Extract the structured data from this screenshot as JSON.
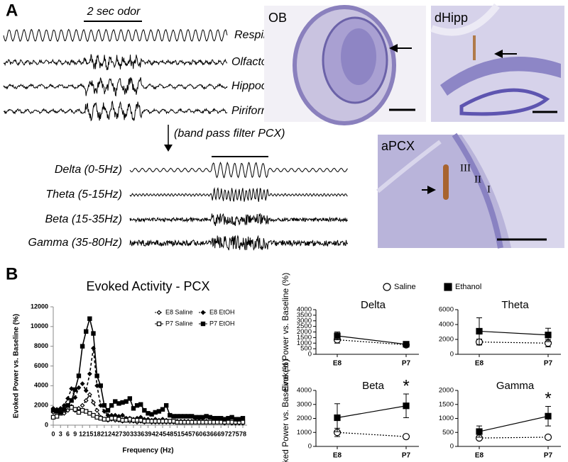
{
  "panel_a": {
    "label": "A",
    "odor_bar": "2 sec odor",
    "traces": [
      "Respiration",
      "Olfactory Bulb",
      "Hippocampus",
      "Piriform Cortex"
    ],
    "filter": "(band pass filter PCX)",
    "bands": [
      "Delta (0-5Hz)",
      "Theta (5-15Hz)",
      "Beta (15-35Hz)",
      "Gamma (35-80Hz)"
    ],
    "images": {
      "ob": "OB",
      "dhipp": "dHipp",
      "apcx": "aPCX",
      "layers": [
        "III",
        "II",
        "I"
      ]
    }
  },
  "panel_b": {
    "label": "B"
  },
  "chart_data": [
    {
      "type": "line",
      "title": "Evoked Activity - PCX",
      "x_label": "Frequency (Hz)",
      "y_label": "Evoked Power vs. Baseline (%)",
      "x": [
        0,
        1.5,
        3,
        4.5,
        6,
        7.5,
        9,
        10.5,
        12,
        13.5,
        15,
        16.5,
        18,
        19.5,
        21,
        22.5,
        24,
        25.5,
        27,
        28.5,
        30,
        31.5,
        33,
        34.5,
        36,
        37.5,
        39,
        40.5,
        42,
        43.5,
        45,
        46.5,
        48,
        49.5,
        51,
        52.5,
        54,
        55.5,
        57,
        58.5,
        60,
        61.5,
        63,
        64.5,
        66,
        67.5,
        69,
        70.5,
        72,
        73.5,
        75,
        76.5,
        78
      ],
      "xlim": [
        0,
        78
      ],
      "xticks": [
        0,
        3,
        6,
        9,
        12,
        15,
        18,
        21,
        24,
        27,
        30,
        33,
        36,
        39,
        42,
        45,
        48,
        51,
        54,
        57,
        60,
        63,
        66,
        69,
        72,
        75,
        78
      ],
      "ylim": [
        0,
        12000
      ],
      "yticks": [
        0,
        2000,
        4000,
        6000,
        8000,
        10000,
        12000
      ],
      "grid": false,
      "legend": "upper right",
      "series": [
        {
          "name": "E8 Saline",
          "color": "#000000",
          "marker": "open-diamond",
          "dashed": true,
          "values": [
            1300,
            1400,
            1500,
            1200,
            1500,
            1900,
            1500,
            1700,
            2000,
            2500,
            3100,
            2300,
            1500,
            800,
            600,
            500,
            600,
            500,
            500,
            400,
            500,
            400,
            400,
            300,
            400,
            300,
            400,
            300,
            300,
            300,
            300,
            300,
            300,
            300,
            300,
            300,
            300,
            300,
            300,
            300,
            300,
            300,
            300,
            300,
            300,
            300,
            300,
            200,
            300,
            200,
            200,
            200,
            200
          ]
        },
        {
          "name": "E8 EtOH",
          "color": "#000000",
          "marker": "filled-diamond",
          "dashed": true,
          "values": [
            1700,
            1600,
            1700,
            2000,
            2700,
            3700,
            2800,
            3800,
            4200,
            3500,
            5200,
            7800,
            4000,
            2000,
            1400,
            1000,
            1000,
            1000,
            900,
            1000,
            700,
            700,
            600,
            700,
            800,
            600,
            600,
            500,
            600,
            500,
            600,
            500,
            400,
            400,
            400,
            400,
            400,
            400,
            400,
            400,
            400,
            400,
            400,
            300,
            300,
            300,
            300,
            300,
            300,
            300,
            300,
            300,
            300
          ]
        },
        {
          "name": "P7 Saline",
          "color": "#000000",
          "marker": "open-square",
          "dashed": false,
          "values": [
            800,
            900,
            1200,
            1500,
            2000,
            1800,
            1600,
            1300,
            1500,
            1400,
            1200,
            1000,
            800,
            700,
            600,
            600,
            700,
            700,
            600,
            500,
            500,
            600,
            500,
            500,
            500,
            400,
            400,
            400,
            400,
            400,
            400,
            400,
            400,
            400,
            300,
            300,
            300,
            300,
            300,
            300,
            300,
            300,
            300,
            300,
            300,
            300,
            300,
            300,
            300,
            300,
            300,
            300,
            300
          ]
        },
        {
          "name": "P7 EtOH",
          "color": "#000000",
          "marker": "filled-square",
          "dashed": false,
          "values": [
            1500,
            1400,
            1300,
            1600,
            2000,
            2500,
            3600,
            5000,
            8000,
            9500,
            10800,
            9300,
            5000,
            4000,
            2000,
            1500,
            2000,
            2400,
            2200,
            2300,
            2400,
            2700,
            1700,
            2000,
            2100,
            1500,
            1200,
            1100,
            1300,
            1400,
            1600,
            2000,
            1000,
            900,
            900,
            900,
            900,
            900,
            900,
            800,
            800,
            800,
            900,
            800,
            700,
            700,
            700,
            600,
            700,
            800,
            600,
            600,
            700
          ]
        }
      ]
    },
    {
      "type": "errorbar",
      "title": "Delta",
      "y_label": "Evoked Power vs. Baseline (%)",
      "categories": [
        "E8",
        "P7"
      ],
      "ylim": [
        0,
        4000
      ],
      "yticks": [
        0,
        500,
        1000,
        1500,
        2000,
        2500,
        3000,
        3500,
        4000
      ],
      "legend": "top",
      "series": [
        {
          "name": "Saline",
          "color": "#000000",
          "marker": "open-circle",
          "dashed": true,
          "values": [
            1300,
            850
          ],
          "errors": [
            300,
            200
          ]
        },
        {
          "name": "Ethanol",
          "color": "#000000",
          "marker": "filled-square",
          "dashed": false,
          "values": [
            1650,
            900
          ],
          "errors": [
            350,
            200
          ]
        }
      ]
    },
    {
      "type": "errorbar",
      "title": "Theta",
      "categories": [
        "E8",
        "P7"
      ],
      "ylim": [
        0,
        6000
      ],
      "yticks": [
        0,
        2000,
        4000,
        6000
      ],
      "series": [
        {
          "color": "#000000",
          "marker": "open-circle",
          "dashed": true,
          "values": [
            1650,
            1500
          ],
          "errors": [
            400,
            500
          ]
        },
        {
          "color": "#000000",
          "marker": "filled-square",
          "dashed": false,
          "values": [
            3100,
            2600
          ],
          "errors": [
            1800,
            900
          ]
        }
      ]
    },
    {
      "type": "errorbar",
      "title": "Beta",
      "y_label": "Evoked Power vs. Baseline (%)",
      "categories": [
        "E8",
        "P7"
      ],
      "ylim": [
        0,
        4000
      ],
      "yticks": [
        0,
        1000,
        2000,
        3000,
        4000
      ],
      "annotation": "*",
      "series": [
        {
          "color": "#000000",
          "marker": "open-circle",
          "dashed": true,
          "values": [
            1000,
            700
          ],
          "errors": [
            300,
            150
          ]
        },
        {
          "color": "#000000",
          "marker": "filled-square",
          "dashed": false,
          "values": [
            2050,
            2900
          ],
          "errors": [
            1000,
            850
          ]
        }
      ]
    },
    {
      "type": "errorbar",
      "title": "Gamma",
      "categories": [
        "E8",
        "P7"
      ],
      "ylim": [
        0,
        2000
      ],
      "yticks": [
        0,
        500,
        1000,
        1500,
        2000
      ],
      "annotation": "*",
      "series": [
        {
          "color": "#000000",
          "marker": "open-circle",
          "dashed": true,
          "values": [
            300,
            330
          ],
          "errors": [
            40,
            50
          ]
        },
        {
          "color": "#000000",
          "marker": "filled-square",
          "dashed": false,
          "values": [
            530,
            1080
          ],
          "errors": [
            200,
            350
          ]
        }
      ]
    }
  ]
}
